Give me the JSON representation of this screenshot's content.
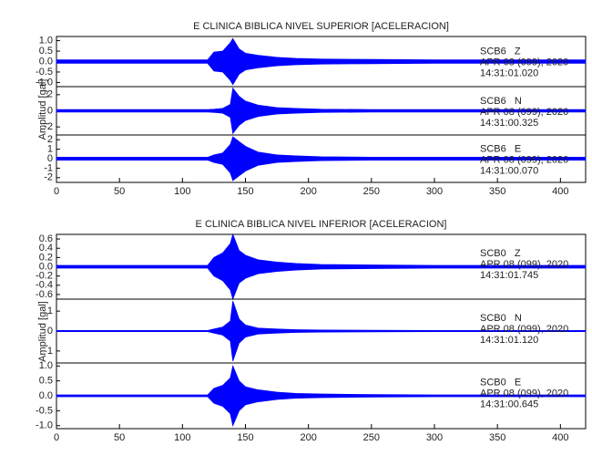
{
  "chart_data": [
    {
      "type": "seismogram",
      "title": "E CLINICA BIBLICA NIVEL SUPERIOR [ACELERACION]",
      "y_label": "Amplitud [gal]",
      "xlim": [
        0,
        420
      ],
      "xticks": [
        0,
        50,
        100,
        150,
        200,
        250,
        300,
        350,
        400
      ],
      "panels": [
        {
          "station": "SCB6   Z",
          "date": "APR 08 (099), 2020",
          "time": "14:31:01.020",
          "color": "#0000ff",
          "ylim": [
            -1.2,
            1.2
          ],
          "yticks": [
            {
              "value": -1,
              "label": "-1.0"
            },
            -0.5,
            {
              "value": 0,
              "label": "0.0"
            },
            0.5,
            {
              "value": 1,
              "label": "1.0"
            }
          ],
          "x": [
            0,
            120,
            125,
            132,
            138,
            140,
            145,
            150,
            160,
            175,
            190,
            210,
            250,
            300,
            420
          ],
          "values": [
            0.08,
            0.08,
            0.45,
            0.5,
            0.9,
            1.1,
            0.6,
            0.4,
            0.3,
            0.2,
            0.15,
            0.12,
            0.1,
            0.08,
            0.08
          ]
        },
        {
          "station": "SCB6   N",
          "date": "APR 08 (099), 2020",
          "time": "14:31:00.325",
          "color": "#0000ff",
          "ylim": [
            -3,
            3
          ],
          "yticks": [
            -2,
            0,
            2
          ],
          "x": [
            0,
            120,
            125,
            132,
            138,
            140,
            145,
            150,
            160,
            175,
            190,
            210,
            250,
            300,
            420
          ],
          "values": [
            0.15,
            0.15,
            0.2,
            0.3,
            0.8,
            2.8,
            1.8,
            1.2,
            0.7,
            0.4,
            0.3,
            0.2,
            0.15,
            0.15,
            0.15
          ]
        },
        {
          "station": "SCB6   E",
          "date": "APR 08 (099), 2020",
          "time": "14:31:00.070",
          "color": "#0000ff",
          "ylim": [
            -2.5,
            2.5
          ],
          "yticks": [
            -2,
            -1,
            0,
            1,
            2
          ],
          "x": [
            0,
            120,
            125,
            132,
            138,
            140,
            145,
            150,
            160,
            175,
            190,
            210,
            250,
            300,
            420
          ],
          "values": [
            0.15,
            0.15,
            0.4,
            0.6,
            1.5,
            2.3,
            1.8,
            1.3,
            0.7,
            0.4,
            0.3,
            0.2,
            0.15,
            0.15,
            0.15
          ]
        }
      ]
    },
    {
      "type": "seismogram",
      "title": "E CLINICA BIBLICA NIVEL INFERIOR [ACELERACION]",
      "y_label": "Amplitud [gal]",
      "xlim": [
        0,
        420
      ],
      "xticks": [
        0,
        50,
        100,
        150,
        200,
        250,
        300,
        350,
        400
      ],
      "panels": [
        {
          "station": "SCB0   Z",
          "date": "APR 08 (099), 2020",
          "time": "14:31:01.745",
          "color": "#0000ff",
          "ylim": [
            -0.7,
            0.7
          ],
          "yticks": [
            -0.6,
            -0.4,
            -0.2,
            {
              "value": 0,
              "label": "0.0"
            },
            0.2,
            0.4,
            0.6
          ],
          "x": [
            0,
            120,
            125,
            132,
            138,
            140,
            145,
            150,
            160,
            175,
            190,
            210,
            250,
            300,
            420
          ],
          "values": [
            0.03,
            0.03,
            0.2,
            0.3,
            0.5,
            0.7,
            0.35,
            0.25,
            0.15,
            0.1,
            0.07,
            0.05,
            0.04,
            0.03,
            0.03
          ]
        },
        {
          "station": "SCB0   N",
          "date": "APR 08 (099), 2020",
          "time": "14:31:01.120",
          "color": "#0000ff",
          "ylim": [
            -1.6,
            1.6
          ],
          "yticks": [
            -1,
            0,
            1
          ],
          "x": [
            0,
            120,
            125,
            132,
            138,
            140,
            145,
            150,
            160,
            175,
            190,
            210,
            250,
            300,
            420
          ],
          "values": [
            0.03,
            0.03,
            0.1,
            0.2,
            0.5,
            1.5,
            0.6,
            0.3,
            0.15,
            0.1,
            0.07,
            0.05,
            0.04,
            0.03,
            0.03
          ]
        },
        {
          "station": "SCB0   E",
          "date": "APR 08 (099), 2020",
          "time": "14:31:00.645",
          "color": "#0000ff",
          "ylim": [
            -1.1,
            1.1
          ],
          "yticks": [
            {
              "value": -1,
              "label": "-1.0"
            },
            -0.5,
            {
              "value": 0,
              "label": "0.0"
            },
            0.5,
            {
              "value": 1,
              "label": "1.0"
            }
          ],
          "x": [
            0,
            120,
            125,
            132,
            138,
            140,
            145,
            150,
            160,
            175,
            190,
            210,
            250,
            300,
            420
          ],
          "values": [
            0.03,
            0.03,
            0.25,
            0.35,
            0.6,
            1.0,
            0.5,
            0.3,
            0.2,
            0.12,
            0.08,
            0.06,
            0.04,
            0.03,
            0.03
          ]
        }
      ]
    }
  ]
}
